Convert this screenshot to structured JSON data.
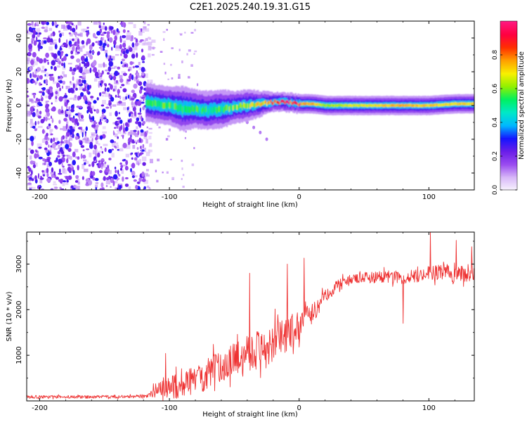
{
  "figure_title": "C2E1.2025.240.19.31.G15",
  "chart_data": [
    {
      "type": "heatmap",
      "title": "C2E1.2025.240.19.31.G15",
      "xlabel": "Height of straight line (km)",
      "ylabel": "Frequency (Hz)",
      "xlim": [
        -210,
        135
      ],
      "ylim": [
        -50,
        50
      ],
      "xticks": [
        -200,
        -100,
        0,
        100
      ],
      "yticks": [
        -40,
        -20,
        0,
        20,
        40
      ],
      "noise_region_x": [
        -210,
        -118
      ],
      "signal_band": {
        "x": [
          -118,
          -110,
          -100,
          -90,
          -80,
          -70,
          -60,
          -50,
          -40,
          -30,
          -20,
          -10,
          0,
          10,
          20,
          40,
          60,
          80,
          100,
          120,
          135
        ],
        "center_hz": [
          2,
          1,
          0,
          -2,
          -2,
          -3,
          -2,
          -1,
          0,
          1,
          2,
          2,
          1,
          1,
          0,
          0,
          0,
          0,
          0,
          1,
          1
        ],
        "halfwidth_hz": [
          6,
          6,
          6,
          7,
          6,
          6,
          6,
          5,
          5,
          4,
          3,
          3,
          3,
          3,
          3,
          3,
          3,
          3,
          3,
          3,
          3
        ],
        "peak_amplitude": [
          0.5,
          0.55,
          0.55,
          0.5,
          0.55,
          0.5,
          0.55,
          0.6,
          0.6,
          0.7,
          0.85,
          0.9,
          0.85,
          0.85,
          0.7,
          0.75,
          0.8,
          0.85,
          0.8,
          0.8,
          0.8
        ]
      },
      "faint_trace": {
        "x": [
          -40,
          -35,
          -30,
          -25
        ],
        "y": [
          -10,
          -13,
          -16,
          -20
        ]
      },
      "colorbar": {
        "label": "Normalized spectral amplitude",
        "range": [
          0,
          1
        ],
        "ticks": [
          "0.0",
          "0.2",
          "0.4",
          "0.6",
          "0.8"
        ],
        "colors": [
          "#f8f4fd",
          "#d8b8f8",
          "#9a4cf0",
          "#6a1ee8",
          "#1515ff",
          "#00b8ff",
          "#00e8c8",
          "#00f060",
          "#90f000",
          "#f8f000",
          "#ffa000",
          "#ff3000",
          "#ff0040",
          "#ff1880"
        ]
      }
    },
    {
      "type": "line",
      "xlabel": "Height of straight line (km)",
      "ylabel": "SNR (10 * v/v)",
      "xlim": [
        -210,
        135
      ],
      "ylim": [
        0,
        3700
      ],
      "xticks": [
        -200,
        -100,
        0,
        100
      ],
      "yticks": [
        1000,
        2000,
        3000
      ],
      "color": "#ee3333",
      "series": [
        {
          "name": "SNR",
          "x": [
            -210,
            -180,
            -150,
            -120,
            -115,
            -110,
            -100,
            -90,
            -80,
            -70,
            -60,
            -50,
            -40,
            -30,
            -20,
            -10,
            -5,
            0,
            10,
            20,
            30,
            40,
            50,
            60,
            70,
            80,
            90,
            100,
            110,
            120,
            135
          ],
          "mean": [
            90,
            85,
            90,
            95,
            130,
            260,
            300,
            350,
            470,
            600,
            760,
            900,
            1050,
            1150,
            1300,
            1400,
            1550,
            1650,
            1900,
            2300,
            2550,
            2650,
            2700,
            2720,
            2730,
            2700,
            2750,
            2800,
            2820,
            2780,
            2800
          ],
          "noise_amp": [
            40,
            40,
            40,
            40,
            60,
            250,
            350,
            350,
            400,
            450,
            450,
            450,
            500,
            550,
            550,
            500,
            450,
            400,
            300,
            180,
            150,
            150,
            150,
            170,
            170,
            180,
            180,
            200,
            230,
            220,
            220
          ],
          "spikes": [
            {
              "x": -103,
              "y": 1040
            },
            {
              "x": -66,
              "y": 1240
            },
            {
              "x": -38,
              "y": 2800
            },
            {
              "x": -9,
              "y": 3000
            },
            {
              "x": 4,
              "y": 3130
            },
            {
              "x": 80,
              "y": 1700
            },
            {
              "x": 101,
              "y": 3700
            },
            {
              "x": 121,
              "y": 3520
            },
            {
              "x": 133,
              "y": 3380
            }
          ]
        }
      ]
    }
  ]
}
